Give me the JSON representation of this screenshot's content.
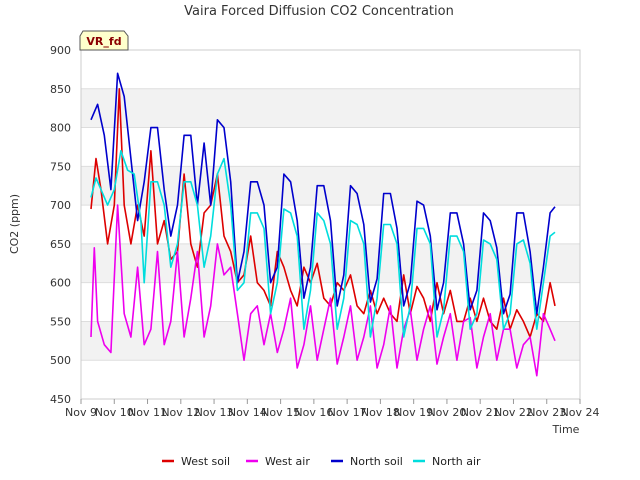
{
  "chart_data": {
    "type": "line",
    "title": "Vaira Forced Diffusion CO2 Concentration",
    "badge": "VR_fd",
    "xlabel": "Time",
    "ylabel": "CO2 (ppm)",
    "ylim": [
      450,
      900
    ],
    "yticks": [
      450,
      500,
      550,
      600,
      650,
      700,
      750,
      800,
      850,
      900
    ],
    "xlim": [
      9,
      24
    ],
    "xticks": [
      {
        "x": 9,
        "label": "Nov 9"
      },
      {
        "x": 10,
        "label": "Nov 10"
      },
      {
        "x": 11,
        "label": "Nov 11"
      },
      {
        "x": 12,
        "label": "Nov 12"
      },
      {
        "x": 13,
        "label": "Nov 13"
      },
      {
        "x": 14,
        "label": "Nov 14"
      },
      {
        "x": 15,
        "label": "Nov 15"
      },
      {
        "x": 16,
        "label": "Nov 16"
      },
      {
        "x": 17,
        "label": "Nov 17"
      },
      {
        "x": 18,
        "label": "Nov 18"
      },
      {
        "x": 19,
        "label": "Nov 19"
      },
      {
        "x": 20,
        "label": "Nov 20"
      },
      {
        "x": 21,
        "label": "Nov 21"
      },
      {
        "x": 22,
        "label": "Nov 22"
      },
      {
        "x": 23,
        "label": "Nov 23"
      },
      {
        "x": 24,
        "label": "Nov 24"
      }
    ],
    "grid": true,
    "legend_position": "bottom",
    "series": [
      {
        "name": "West soil",
        "color": "#dd0000",
        "points": [
          [
            9.3,
            695
          ],
          [
            9.45,
            760
          ],
          [
            9.6,
            720
          ],
          [
            9.8,
            650
          ],
          [
            10.0,
            700
          ],
          [
            10.15,
            850
          ],
          [
            10.3,
            700
          ],
          [
            10.5,
            650
          ],
          [
            10.7,
            700
          ],
          [
            10.9,
            660
          ],
          [
            11.1,
            770
          ],
          [
            11.3,
            650
          ],
          [
            11.5,
            680
          ],
          [
            11.7,
            630
          ],
          [
            11.9,
            640
          ],
          [
            12.1,
            740
          ],
          [
            12.3,
            650
          ],
          [
            12.5,
            620
          ],
          [
            12.7,
            690
          ],
          [
            12.9,
            700
          ],
          [
            13.1,
            740
          ],
          [
            13.3,
            660
          ],
          [
            13.5,
            640
          ],
          [
            13.7,
            600
          ],
          [
            13.9,
            610
          ],
          [
            14.1,
            660
          ],
          [
            14.3,
            600
          ],
          [
            14.5,
            590
          ],
          [
            14.7,
            570
          ],
          [
            14.9,
            640
          ],
          [
            15.1,
            620
          ],
          [
            15.3,
            590
          ],
          [
            15.5,
            570
          ],
          [
            15.7,
            620
          ],
          [
            15.9,
            600
          ],
          [
            16.1,
            625
          ],
          [
            16.3,
            580
          ],
          [
            16.5,
            570
          ],
          [
            16.7,
            600
          ],
          [
            16.9,
            590
          ],
          [
            17.1,
            610
          ],
          [
            17.3,
            570
          ],
          [
            17.5,
            560
          ],
          [
            17.7,
            590
          ],
          [
            17.9,
            560
          ],
          [
            18.1,
            580
          ],
          [
            18.3,
            560
          ],
          [
            18.5,
            550
          ],
          [
            18.7,
            610
          ],
          [
            18.9,
            560
          ],
          [
            19.1,
            595
          ],
          [
            19.3,
            580
          ],
          [
            19.5,
            550
          ],
          [
            19.7,
            600
          ],
          [
            19.9,
            560
          ],
          [
            20.1,
            590
          ],
          [
            20.3,
            550
          ],
          [
            20.5,
            550
          ],
          [
            20.7,
            580
          ],
          [
            20.9,
            550
          ],
          [
            21.1,
            580
          ],
          [
            21.3,
            550
          ],
          [
            21.5,
            540
          ],
          [
            21.7,
            580
          ],
          [
            21.9,
            540
          ],
          [
            22.1,
            565
          ],
          [
            22.3,
            550
          ],
          [
            22.5,
            530
          ],
          [
            22.7,
            560
          ],
          [
            22.9,
            550
          ],
          [
            23.1,
            600
          ],
          [
            23.25,
            570
          ]
        ]
      },
      {
        "name": "West air",
        "color": "#ee00ee",
        "points": [
          [
            9.3,
            530
          ],
          [
            9.4,
            645
          ],
          [
            9.5,
            550
          ],
          [
            9.7,
            520
          ],
          [
            9.9,
            510
          ],
          [
            10.1,
            700
          ],
          [
            10.3,
            560
          ],
          [
            10.5,
            530
          ],
          [
            10.7,
            620
          ],
          [
            10.9,
            520
          ],
          [
            11.1,
            540
          ],
          [
            11.3,
            640
          ],
          [
            11.5,
            520
          ],
          [
            11.7,
            550
          ],
          [
            11.9,
            640
          ],
          [
            12.1,
            530
          ],
          [
            12.3,
            580
          ],
          [
            12.5,
            640
          ],
          [
            12.7,
            530
          ],
          [
            12.9,
            570
          ],
          [
            13.1,
            650
          ],
          [
            13.3,
            610
          ],
          [
            13.5,
            620
          ],
          [
            13.7,
            560
          ],
          [
            13.9,
            500
          ],
          [
            14.1,
            560
          ],
          [
            14.3,
            570
          ],
          [
            14.5,
            520
          ],
          [
            14.7,
            560
          ],
          [
            14.9,
            510
          ],
          [
            15.1,
            540
          ],
          [
            15.3,
            580
          ],
          [
            15.5,
            490
          ],
          [
            15.7,
            520
          ],
          [
            15.9,
            570
          ],
          [
            16.1,
            500
          ],
          [
            16.3,
            540
          ],
          [
            16.5,
            580
          ],
          [
            16.7,
            495
          ],
          [
            16.9,
            530
          ],
          [
            17.1,
            570
          ],
          [
            17.3,
            500
          ],
          [
            17.5,
            530
          ],
          [
            17.7,
            570
          ],
          [
            17.9,
            490
          ],
          [
            18.1,
            520
          ],
          [
            18.3,
            570
          ],
          [
            18.5,
            490
          ],
          [
            18.7,
            540
          ],
          [
            18.9,
            565
          ],
          [
            19.1,
            500
          ],
          [
            19.3,
            540
          ],
          [
            19.5,
            570
          ],
          [
            19.7,
            495
          ],
          [
            19.9,
            530
          ],
          [
            20.1,
            560
          ],
          [
            20.3,
            500
          ],
          [
            20.5,
            550
          ],
          [
            20.7,
            555
          ],
          [
            20.9,
            490
          ],
          [
            21.1,
            530
          ],
          [
            21.3,
            560
          ],
          [
            21.5,
            500
          ],
          [
            21.7,
            540
          ],
          [
            21.9,
            540
          ],
          [
            22.1,
            490
          ],
          [
            22.3,
            520
          ],
          [
            22.5,
            530
          ],
          [
            22.7,
            480
          ],
          [
            22.9,
            560
          ],
          [
            23.1,
            540
          ],
          [
            23.25,
            525
          ]
        ]
      },
      {
        "name": "North soil",
        "color": "#0000cc",
        "points": [
          [
            9.3,
            810
          ],
          [
            9.5,
            830
          ],
          [
            9.7,
            790
          ],
          [
            9.9,
            720
          ],
          [
            10.1,
            870
          ],
          [
            10.3,
            840
          ],
          [
            10.5,
            760
          ],
          [
            10.7,
            680
          ],
          [
            10.9,
            730
          ],
          [
            11.1,
            800
          ],
          [
            11.3,
            800
          ],
          [
            11.5,
            720
          ],
          [
            11.7,
            660
          ],
          [
            11.9,
            700
          ],
          [
            12.1,
            790
          ],
          [
            12.3,
            790
          ],
          [
            12.5,
            700
          ],
          [
            12.7,
            780
          ],
          [
            12.9,
            700
          ],
          [
            13.1,
            810
          ],
          [
            13.3,
            800
          ],
          [
            13.5,
            730
          ],
          [
            13.7,
            600
          ],
          [
            13.9,
            640
          ],
          [
            14.1,
            730
          ],
          [
            14.3,
            730
          ],
          [
            14.5,
            700
          ],
          [
            14.7,
            600
          ],
          [
            14.9,
            620
          ],
          [
            15.1,
            740
          ],
          [
            15.3,
            730
          ],
          [
            15.5,
            680
          ],
          [
            15.7,
            580
          ],
          [
            15.9,
            620
          ],
          [
            16.1,
            725
          ],
          [
            16.3,
            725
          ],
          [
            16.5,
            680
          ],
          [
            16.7,
            570
          ],
          [
            16.9,
            610
          ],
          [
            17.1,
            725
          ],
          [
            17.3,
            715
          ],
          [
            17.5,
            675
          ],
          [
            17.7,
            575
          ],
          [
            17.9,
            605
          ],
          [
            18.1,
            715
          ],
          [
            18.3,
            715
          ],
          [
            18.5,
            670
          ],
          [
            18.7,
            570
          ],
          [
            18.9,
            600
          ],
          [
            19.1,
            705
          ],
          [
            19.3,
            700
          ],
          [
            19.5,
            660
          ],
          [
            19.7,
            565
          ],
          [
            19.9,
            600
          ],
          [
            20.1,
            690
          ],
          [
            20.3,
            690
          ],
          [
            20.5,
            650
          ],
          [
            20.7,
            565
          ],
          [
            20.9,
            590
          ],
          [
            21.1,
            690
          ],
          [
            21.3,
            680
          ],
          [
            21.5,
            645
          ],
          [
            21.7,
            560
          ],
          [
            21.9,
            585
          ],
          [
            22.1,
            690
          ],
          [
            22.3,
            690
          ],
          [
            22.5,
            640
          ],
          [
            22.7,
            560
          ],
          [
            22.9,
            620
          ],
          [
            23.1,
            690
          ],
          [
            23.25,
            698
          ]
        ]
      },
      {
        "name": "North air",
        "color": "#00dddd",
        "points": [
          [
            9.3,
            710
          ],
          [
            9.45,
            735
          ],
          [
            9.6,
            720
          ],
          [
            9.8,
            700
          ],
          [
            10.0,
            720
          ],
          [
            10.2,
            770
          ],
          [
            10.4,
            745
          ],
          [
            10.6,
            740
          ],
          [
            10.8,
            680
          ],
          [
            10.9,
            600
          ],
          [
            11.1,
            730
          ],
          [
            11.3,
            730
          ],
          [
            11.5,
            700
          ],
          [
            11.7,
            620
          ],
          [
            11.9,
            650
          ],
          [
            12.1,
            730
          ],
          [
            12.3,
            730
          ],
          [
            12.5,
            700
          ],
          [
            12.7,
            620
          ],
          [
            12.9,
            660
          ],
          [
            13.1,
            740
          ],
          [
            13.3,
            760
          ],
          [
            13.5,
            700
          ],
          [
            13.7,
            590
          ],
          [
            13.9,
            600
          ],
          [
            14.1,
            690
          ],
          [
            14.3,
            690
          ],
          [
            14.5,
            670
          ],
          [
            14.7,
            560
          ],
          [
            14.9,
            600
          ],
          [
            15.1,
            695
          ],
          [
            15.3,
            690
          ],
          [
            15.5,
            660
          ],
          [
            15.7,
            540
          ],
          [
            15.9,
            590
          ],
          [
            16.1,
            690
          ],
          [
            16.3,
            680
          ],
          [
            16.5,
            650
          ],
          [
            16.7,
            540
          ],
          [
            16.9,
            580
          ],
          [
            17.1,
            680
          ],
          [
            17.3,
            675
          ],
          [
            17.5,
            650
          ],
          [
            17.7,
            530
          ],
          [
            17.9,
            580
          ],
          [
            18.1,
            675
          ],
          [
            18.3,
            675
          ],
          [
            18.5,
            650
          ],
          [
            18.7,
            530
          ],
          [
            18.9,
            570
          ],
          [
            19.1,
            670
          ],
          [
            19.3,
            670
          ],
          [
            19.5,
            650
          ],
          [
            19.7,
            530
          ],
          [
            19.9,
            565
          ],
          [
            20.1,
            660
          ],
          [
            20.3,
            660
          ],
          [
            20.5,
            640
          ],
          [
            20.7,
            540
          ],
          [
            20.9,
            560
          ],
          [
            21.1,
            655
          ],
          [
            21.3,
            650
          ],
          [
            21.5,
            630
          ],
          [
            21.7,
            540
          ],
          [
            21.9,
            560
          ],
          [
            22.1,
            650
          ],
          [
            22.3,
            655
          ],
          [
            22.5,
            625
          ],
          [
            22.7,
            540
          ],
          [
            22.9,
            600
          ],
          [
            23.1,
            660
          ],
          [
            23.25,
            665
          ]
        ]
      }
    ]
  }
}
